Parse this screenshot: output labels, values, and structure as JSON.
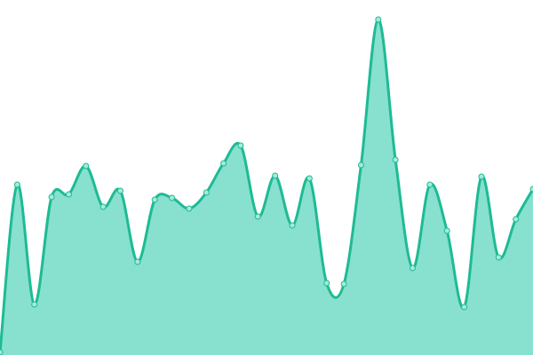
{
  "chart_data": {
    "type": "area",
    "title": "",
    "xlabel": "",
    "ylabel": "",
    "x": [
      0,
      1,
      2,
      3,
      4,
      5,
      6,
      7,
      8,
      9,
      10,
      11,
      12,
      13,
      14,
      15,
      16,
      17,
      18,
      19,
      20,
      21,
      22,
      23,
      24,
      25,
      26,
      27,
      28,
      29,
      30,
      31
    ],
    "series": [
      {
        "values": [
          3,
          192,
          57,
          178,
          181,
          213,
          167,
          185,
          105,
          175,
          177,
          165,
          183,
          216,
          236,
          156,
          202,
          146,
          199,
          81,
          80,
          214,
          378,
          220,
          98,
          192,
          140,
          54,
          201,
          110,
          153,
          187
        ]
      }
    ],
    "xlim": [
      0,
      31
    ],
    "ylim": [
      0,
      400
    ],
    "grid": false,
    "legend": "none",
    "axes_visible": false,
    "smooth": true,
    "colors": {
      "line": "#1dbb94",
      "fill": "#88e0cf",
      "marker_fill": "#a6ead9",
      "marker_stroke": "#1dbb94"
    }
  }
}
